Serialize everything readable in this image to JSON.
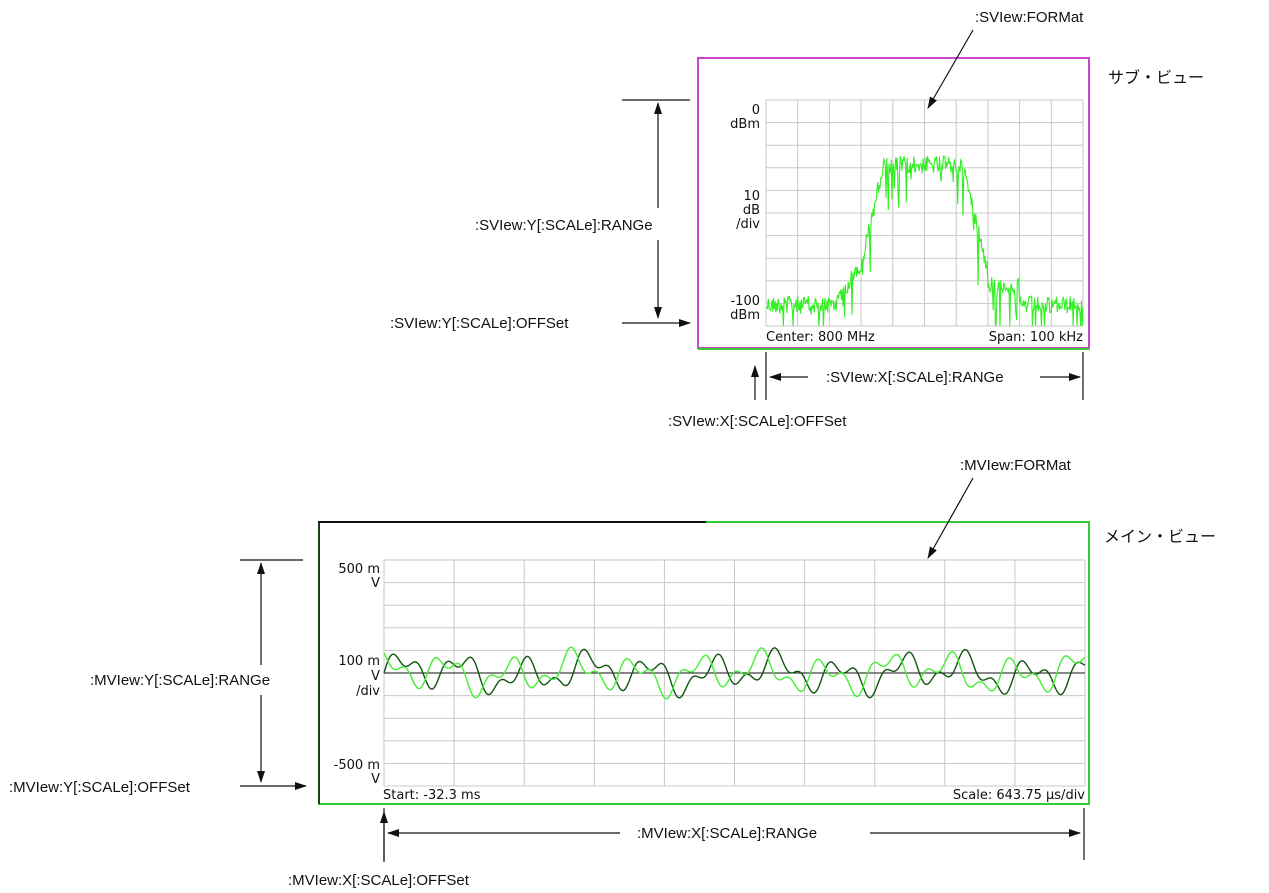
{
  "sub_view": {
    "caption": "サブ・ビュー",
    "format_label": ":SVIew:FORMat",
    "y_range_label": ":SVIew:Y[:SCALe]:RANGe",
    "y_offset_label": ":SVIew:Y[:SCALe]:OFFSet",
    "x_range_label": ":SVIew:X[:SCALe]:RANGe",
    "x_offset_label": ":SVIew:X[:SCALe]:OFFSet",
    "screen": {
      "top_value": "0",
      "top_unit": "dBm",
      "scale_value": "10",
      "scale_unit": "dB",
      "scale_per": "/div",
      "bottom_value": "-100",
      "bottom_unit": "dBm",
      "center_text": "Center: 800 MHz",
      "span_text": "Span: 100 kHz"
    },
    "border_color": "#cc44cc",
    "trace_color": "#33ee22"
  },
  "main_view": {
    "caption": "メイン・ビュー",
    "format_label": ":MVIew:FORMat",
    "y_range_label": ":MVIew:Y[:SCALe]:RANGe",
    "y_offset_label": ":MVIew:Y[:SCALe]:OFFSet",
    "x_range_label": ":MVIew:X[:SCALe]:RANGe",
    "x_offset_label": ":MVIew:X[:SCALe]:OFFSet",
    "screen": {
      "top_value": "500 m",
      "top_unit": "V",
      "scale_value": "100 m",
      "scale_unit": "V",
      "scale_per": "/div",
      "bottom_value": "-500 m",
      "bottom_unit": "V",
      "start_text": "Start: -32.3 ms",
      "scale_text": "Scale: 643.75 µs/div"
    },
    "border_color": "#33cc33",
    "trace_i_color": "#44ee33",
    "trace_q_color": "#115511"
  }
}
